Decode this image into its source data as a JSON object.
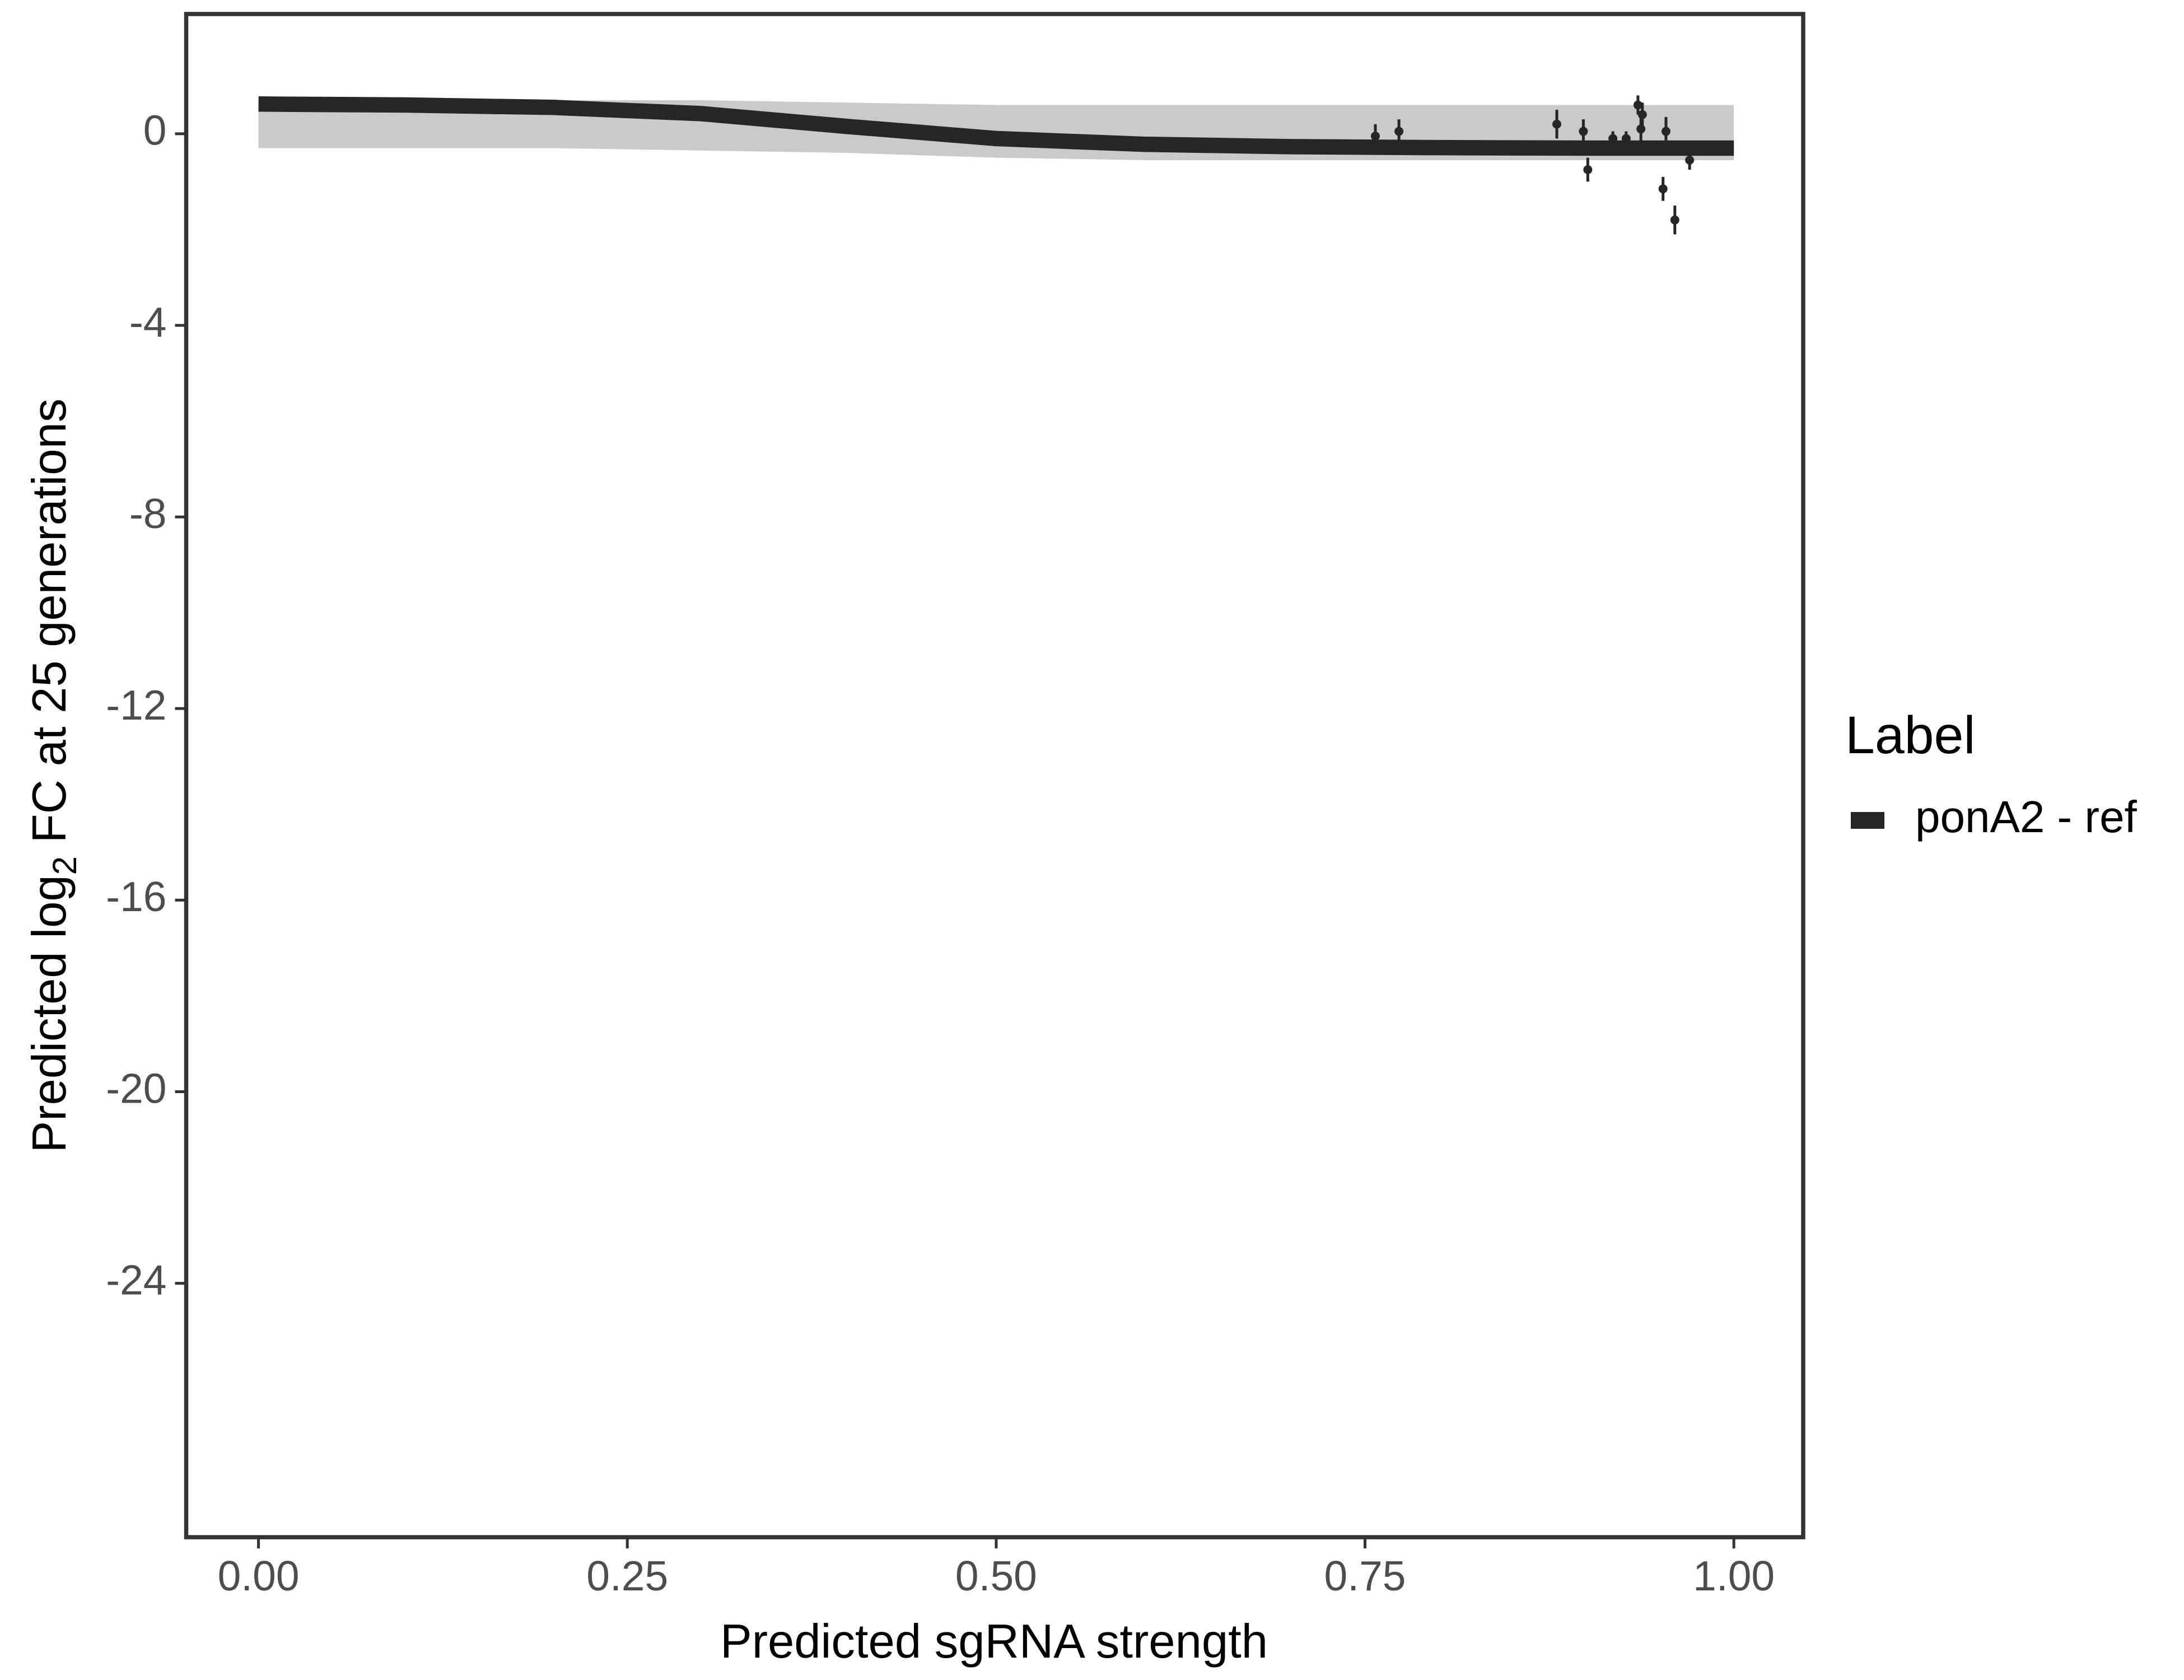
{
  "chart_data": {
    "type": "line",
    "x_label": "Predicted sgRNA strength",
    "y_label": {
      "before": "Predicted  log",
      "sub": "2",
      "after": " FC at 25 generations"
    },
    "legend_title": "Label",
    "legend_position": "right",
    "xlim": [
      -0.049,
      1.047
    ],
    "ylim": [
      -29.3,
      2.5
    ],
    "xticks": [
      {
        "value": 0,
        "label": "0.00"
      },
      {
        "value": 0.25,
        "label": "0.25"
      },
      {
        "value": 0.5,
        "label": "0.50"
      },
      {
        "value": 0.75,
        "label": "0.75"
      },
      {
        "value": 1,
        "label": "1.00"
      }
    ],
    "yticks": [
      0,
      -4,
      -8,
      -12,
      -16,
      -20,
      -24
    ],
    "series": [
      {
        "name": "ponA2 - ref",
        "color": "#262626",
        "band_color": "#b3b3b3",
        "x": [
          0,
          0.1,
          0.2,
          0.3,
          0.4,
          0.5,
          0.6,
          0.7,
          0.8,
          0.9,
          1
        ],
        "values": [
          0.62,
          0.6,
          0.55,
          0.42,
          0.15,
          -0.1,
          -0.22,
          -0.27,
          -0.29,
          -0.3,
          -0.3
        ],
        "lower": [
          -0.3,
          -0.3,
          -0.3,
          -0.35,
          -0.4,
          -0.5,
          -0.55,
          -0.55,
          -0.55,
          -0.55,
          -0.55
        ],
        "upper": [
          0.7,
          0.7,
          0.7,
          0.7,
          0.65,
          0.6,
          0.6,
          0.6,
          0.6,
          0.6,
          0.6
        ]
      }
    ],
    "points": {
      "color": "#262626",
      "x": [
        0.757,
        0.773,
        0.88,
        0.898,
        0.901,
        0.918,
        0.927,
        0.935,
        0.937,
        0.938,
        0.952,
        0.954,
        0.96,
        0.97
      ],
      "values": [
        -0.05,
        0.05,
        0.2,
        0.05,
        -0.75,
        -0.1,
        -0.1,
        0.6,
        0.1,
        0.4,
        -1.15,
        0.05,
        -1.8,
        -0.55
      ],
      "errors": [
        0.25,
        0.25,
        0.3,
        0.25,
        0.25,
        0.15,
        0.15,
        0.2,
        0.25,
        0.25,
        0.25,
        0.3,
        0.3,
        0.2
      ]
    }
  }
}
